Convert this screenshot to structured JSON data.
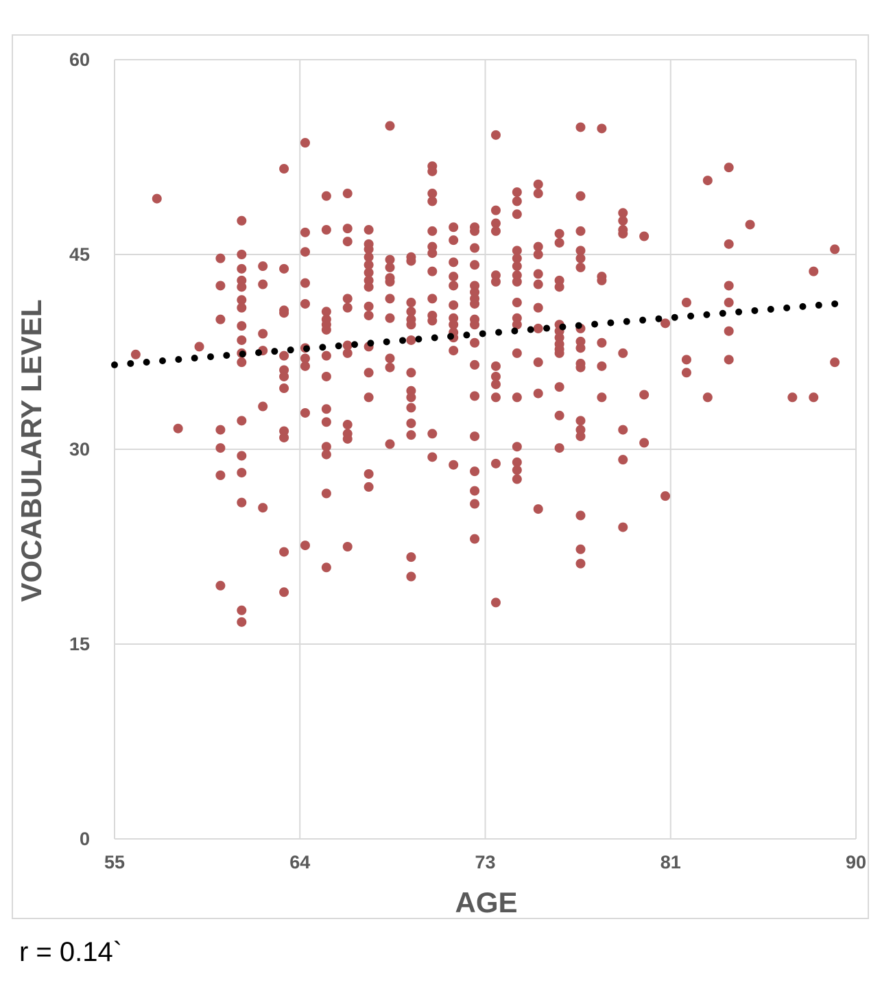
{
  "chart_data": {
    "type": "scatter",
    "xlabel": "AGE",
    "ylabel": "VOCABULARY LEVEL",
    "xlim": [
      55,
      90
    ],
    "ylim": [
      0,
      60
    ],
    "x_ticks": [
      55,
      64,
      73,
      81,
      90
    ],
    "y_ticks": [
      0,
      15,
      30,
      45,
      60
    ],
    "grid": true,
    "point_color": "#b35454",
    "trendline": {
      "style": "dotted",
      "color": "#000000",
      "x": [
        55,
        89
      ],
      "y": [
        36.5,
        41.2
      ]
    },
    "points": [
      [
        56,
        37.3
      ],
      [
        57,
        49.3
      ],
      [
        58,
        31.6
      ],
      [
        59,
        37.9
      ],
      [
        60,
        44.7
      ],
      [
        60,
        42.6
      ],
      [
        60,
        40.0
      ],
      [
        60,
        31.5
      ],
      [
        60,
        30.1
      ],
      [
        60,
        28.0
      ],
      [
        60,
        19.5
      ],
      [
        61,
        47.6
      ],
      [
        61,
        45.0
      ],
      [
        61,
        43.9
      ],
      [
        61,
        43.0
      ],
      [
        61,
        42.5
      ],
      [
        61,
        41.5
      ],
      [
        61,
        40.9
      ],
      [
        61,
        39.5
      ],
      [
        61,
        38.4
      ],
      [
        61,
        37.4
      ],
      [
        61,
        36.7
      ],
      [
        61,
        32.2
      ],
      [
        61,
        29.5
      ],
      [
        61,
        28.2
      ],
      [
        61,
        25.9
      ],
      [
        61,
        17.6
      ],
      [
        61,
        16.7
      ],
      [
        62,
        44.1
      ],
      [
        62,
        42.7
      ],
      [
        62,
        38.9
      ],
      [
        62,
        37.6
      ],
      [
        62,
        33.3
      ],
      [
        62,
        25.5
      ],
      [
        63,
        51.6
      ],
      [
        63,
        43.9
      ],
      [
        63,
        40.7
      ],
      [
        63,
        40.5
      ],
      [
        63,
        37.2
      ],
      [
        63,
        36.1
      ],
      [
        63,
        35.6
      ],
      [
        63,
        34.7
      ],
      [
        63,
        31.4
      ],
      [
        63,
        30.9
      ],
      [
        63,
        22.1
      ],
      [
        63,
        19.0
      ],
      [
        64,
        53.6
      ],
      [
        64,
        46.7
      ],
      [
        64,
        45.2
      ],
      [
        64,
        42.8
      ],
      [
        64,
        41.2
      ],
      [
        64,
        37.8
      ],
      [
        64,
        37.0
      ],
      [
        64,
        36.4
      ],
      [
        64,
        32.8
      ],
      [
        64,
        22.6
      ],
      [
        65,
        49.5
      ],
      [
        65,
        46.9
      ],
      [
        65,
        40.6
      ],
      [
        65,
        40.0
      ],
      [
        65,
        39.6
      ],
      [
        65,
        39.2
      ],
      [
        65,
        37.2
      ],
      [
        65,
        35.6
      ],
      [
        65,
        33.1
      ],
      [
        65,
        32.1
      ],
      [
        65,
        30.2
      ],
      [
        65,
        29.6
      ],
      [
        65,
        26.6
      ],
      [
        65,
        20.9
      ],
      [
        66,
        49.7
      ],
      [
        66,
        47.0
      ],
      [
        66,
        46.0
      ],
      [
        66,
        41.6
      ],
      [
        66,
        40.9
      ],
      [
        66,
        38.0
      ],
      [
        66,
        37.4
      ],
      [
        66,
        31.9
      ],
      [
        66,
        31.2
      ],
      [
        66,
        30.8
      ],
      [
        66,
        22.5
      ],
      [
        67,
        46.9
      ],
      [
        67,
        45.8
      ],
      [
        67,
        45.4
      ],
      [
        67,
        44.8
      ],
      [
        67,
        44.2
      ],
      [
        67,
        43.6
      ],
      [
        67,
        43.0
      ],
      [
        67,
        42.5
      ],
      [
        67,
        41.0
      ],
      [
        67,
        40.3
      ],
      [
        67,
        37.9
      ],
      [
        67,
        35.9
      ],
      [
        67,
        34.0
      ],
      [
        67,
        28.1
      ],
      [
        67,
        27.1
      ],
      [
        68,
        54.9
      ],
      [
        68,
        44.6
      ],
      [
        68,
        44.0
      ],
      [
        68,
        43.2
      ],
      [
        68,
        42.9
      ],
      [
        68,
        41.6
      ],
      [
        68,
        40.1
      ],
      [
        68,
        37.0
      ],
      [
        68,
        36.3
      ],
      [
        68,
        30.4
      ],
      [
        69,
        44.8
      ],
      [
        69,
        44.5
      ],
      [
        69,
        41.3
      ],
      [
        69,
        40.6
      ],
      [
        69,
        40.0
      ],
      [
        69,
        39.6
      ],
      [
        69,
        38.4
      ],
      [
        69,
        35.9
      ],
      [
        69,
        34.5
      ],
      [
        69,
        34.0
      ],
      [
        69,
        33.2
      ],
      [
        69,
        32.0
      ],
      [
        69,
        31.1
      ],
      [
        69,
        21.7
      ],
      [
        69,
        20.2
      ],
      [
        70,
        51.8
      ],
      [
        70,
        51.4
      ],
      [
        70,
        49.7
      ],
      [
        70,
        49.1
      ],
      [
        70,
        46.8
      ],
      [
        70,
        45.6
      ],
      [
        70,
        45.1
      ],
      [
        70,
        43.7
      ],
      [
        70,
        41.6
      ],
      [
        70,
        40.3
      ],
      [
        70,
        39.9
      ],
      [
        70,
        31.2
      ],
      [
        70,
        29.4
      ],
      [
        71,
        47.1
      ],
      [
        71,
        46.1
      ],
      [
        71,
        44.4
      ],
      [
        71,
        43.3
      ],
      [
        71,
        42.6
      ],
      [
        71,
        41.1
      ],
      [
        71,
        40.1
      ],
      [
        71,
        39.6
      ],
      [
        71,
        39.0
      ],
      [
        71,
        38.6
      ],
      [
        71,
        37.6
      ],
      [
        71,
        28.8
      ],
      [
        72,
        47.1
      ],
      [
        72,
        46.8
      ],
      [
        72,
        45.5
      ],
      [
        72,
        44.2
      ],
      [
        72,
        42.6
      ],
      [
        72,
        42.1
      ],
      [
        72,
        41.6
      ],
      [
        72,
        41.2
      ],
      [
        72,
        40.0
      ],
      [
        72,
        39.6
      ],
      [
        72,
        38.2
      ],
      [
        72,
        36.5
      ],
      [
        72,
        34.1
      ],
      [
        72,
        31.0
      ],
      [
        72,
        28.3
      ],
      [
        72,
        26.8
      ],
      [
        72,
        25.8
      ],
      [
        72,
        23.1
      ],
      [
        73,
        54.2
      ],
      [
        73,
        48.4
      ],
      [
        73,
        47.4
      ],
      [
        73,
        46.8
      ],
      [
        73,
        43.4
      ],
      [
        73,
        42.9
      ],
      [
        73,
        36.4
      ],
      [
        73,
        35.6
      ],
      [
        73,
        35.0
      ],
      [
        73,
        34.0
      ],
      [
        73,
        28.9
      ],
      [
        73,
        18.2
      ],
      [
        74,
        49.8
      ],
      [
        74,
        49.1
      ],
      [
        74,
        48.1
      ],
      [
        74,
        45.3
      ],
      [
        74,
        44.7
      ],
      [
        74,
        44.1
      ],
      [
        74,
        43.4
      ],
      [
        74,
        42.9
      ],
      [
        74,
        41.3
      ],
      [
        74,
        40.1
      ],
      [
        74,
        39.6
      ],
      [
        74,
        37.4
      ],
      [
        74,
        34.0
      ],
      [
        74,
        30.2
      ],
      [
        74,
        29.0
      ],
      [
        74,
        28.4
      ],
      [
        74,
        27.7
      ],
      [
        75,
        50.4
      ],
      [
        75,
        49.7
      ],
      [
        75,
        45.6
      ],
      [
        75,
        45.0
      ],
      [
        75,
        43.5
      ],
      [
        75,
        42.7
      ],
      [
        75,
        40.9
      ],
      [
        75,
        39.3
      ],
      [
        75,
        36.7
      ],
      [
        75,
        34.3
      ],
      [
        75,
        25.4
      ],
      [
        76,
        46.6
      ],
      [
        76,
        45.9
      ],
      [
        76,
        43.0
      ],
      [
        76,
        42.5
      ],
      [
        76,
        39.6
      ],
      [
        76,
        39.1
      ],
      [
        76,
        38.6
      ],
      [
        76,
        38.1
      ],
      [
        76,
        37.7
      ],
      [
        76,
        37.4
      ],
      [
        76,
        34.8
      ],
      [
        76,
        32.6
      ],
      [
        76,
        30.1
      ],
      [
        77,
        54.8
      ],
      [
        77,
        49.5
      ],
      [
        77,
        46.8
      ],
      [
        77,
        45.3
      ],
      [
        77,
        44.7
      ],
      [
        77,
        44.0
      ],
      [
        77,
        39.3
      ],
      [
        77,
        38.3
      ],
      [
        77,
        37.8
      ],
      [
        77,
        36.6
      ],
      [
        77,
        36.3
      ],
      [
        77,
        32.2
      ],
      [
        77,
        31.5
      ],
      [
        77,
        31.0
      ],
      [
        77,
        24.9
      ],
      [
        77,
        22.3
      ],
      [
        77,
        21.2
      ],
      [
        78,
        54.7
      ],
      [
        78,
        43.3
      ],
      [
        78,
        43.0
      ],
      [
        78,
        38.2
      ],
      [
        78,
        36.4
      ],
      [
        78,
        34.0
      ],
      [
        79,
        48.2
      ],
      [
        79,
        47.6
      ],
      [
        79,
        46.9
      ],
      [
        79,
        46.6
      ],
      [
        79,
        37.4
      ],
      [
        79,
        31.5
      ],
      [
        79,
        29.2
      ],
      [
        79,
        24.0
      ],
      [
        80,
        46.4
      ],
      [
        80,
        34.2
      ],
      [
        80,
        30.5
      ],
      [
        81,
        39.7
      ],
      [
        81,
        26.4
      ],
      [
        82,
        41.3
      ],
      [
        82,
        36.9
      ],
      [
        82,
        35.9
      ],
      [
        83,
        50.7
      ],
      [
        83,
        34.0
      ],
      [
        84,
        51.7
      ],
      [
        84,
        45.8
      ],
      [
        84,
        42.6
      ],
      [
        84,
        41.3
      ],
      [
        84,
        39.1
      ],
      [
        84,
        36.9
      ],
      [
        85,
        47.3
      ],
      [
        87,
        34.0
      ],
      [
        88,
        43.7
      ],
      [
        88,
        34.0
      ],
      [
        89,
        45.4
      ],
      [
        89,
        36.7
      ]
    ]
  },
  "caption": {
    "text": "r = 0.14`"
  }
}
